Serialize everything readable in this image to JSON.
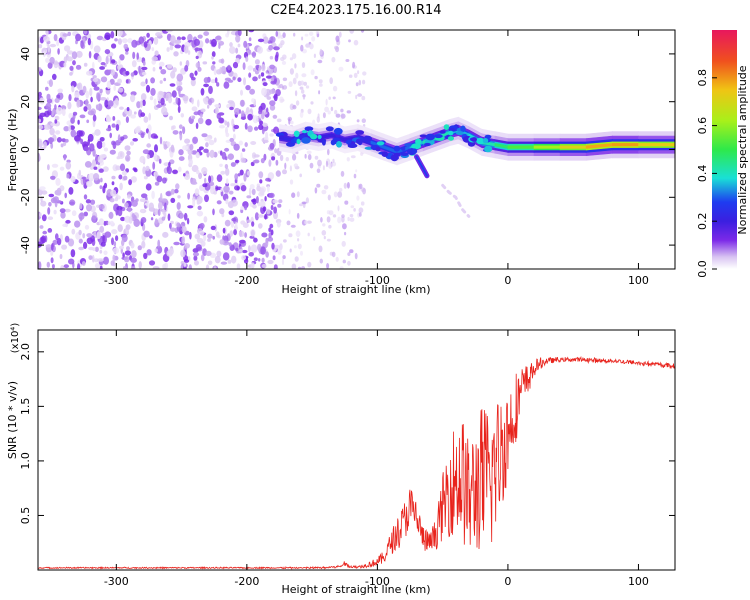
{
  "figure": {
    "title": "C2E4.2023.175.16.00.R14"
  },
  "chart_data": [
    {
      "type": "heatmap",
      "xlabel": "Height of straight line (km)",
      "ylabel": "Frequency (Hz)",
      "xlim": [
        -360,
        128
      ],
      "ylim": [
        -50,
        50
      ],
      "xticks": [
        -300,
        -200,
        -100,
        0,
        100
      ],
      "yticks": [
        -40,
        -20,
        0,
        20,
        40
      ],
      "xtick_labels": [
        "-300",
        "-200",
        "-100",
        "0",
        "100"
      ],
      "ytick_labels": [
        "-40",
        "-20",
        "0",
        "20",
        "40"
      ],
      "colorbar": {
        "label": "Normalized spectral amplitude",
        "range": [
          0,
          1
        ],
        "ticks": [
          0.0,
          0.2,
          0.4,
          0.6,
          0.8
        ],
        "tick_labels": [
          "0.0",
          "0.2",
          "0.4",
          "0.6",
          "0.8"
        ],
        "colormap": [
          "#ffffff",
          "#d9c4f2",
          "#7c2ae8",
          "#3b1fe0",
          "#1e3cf0",
          "#19e0d6",
          "#2ee94a",
          "#a8f01a",
          "#f0c414",
          "#f0501e",
          "#e8175d"
        ]
      },
      "noise_region_x": [
        -360,
        -175
      ],
      "ridge": {
        "x": [
          -175,
          -165,
          -155,
          -145,
          -135,
          -125,
          -115,
          -105,
          -95,
          -85,
          -75,
          -65,
          -55,
          -45,
          -38,
          -30,
          -20,
          -10,
          0,
          20,
          40,
          60,
          80,
          100,
          128
        ],
        "y": [
          5,
          4,
          6,
          5,
          6,
          4,
          5,
          3,
          1,
          -1,
          1,
          3,
          5,
          7,
          8,
          6,
          3,
          2,
          1,
          1,
          1,
          1,
          2,
          2,
          2
        ],
        "amplitude": [
          0.3,
          0.35,
          0.35,
          0.3,
          0.3,
          0.3,
          0.3,
          0.4,
          0.45,
          0.4,
          0.45,
          0.5,
          0.55,
          0.5,
          0.45,
          0.5,
          0.5,
          0.55,
          0.6,
          0.65,
          0.75,
          0.8,
          0.85,
          0.82,
          0.75
        ]
      },
      "branches": [
        {
          "x": [
            -70,
            -65,
            -62
          ],
          "y": [
            -3,
            -8,
            -11
          ]
        },
        {
          "x": [
            -50,
            -45,
            -40,
            -35,
            -30
          ],
          "y": [
            -15,
            -18,
            -20,
            -25,
            -28
          ]
        }
      ]
    },
    {
      "type": "line",
      "xlabel": "Height of straight line (km)",
      "ylabel": "SNR (10 * v/v)",
      "y_multiplier": "(x10⁴)",
      "xlim": [
        -360,
        128
      ],
      "ylim": [
        0,
        2.2
      ],
      "xticks": [
        -300,
        -200,
        -100,
        0,
        100
      ],
      "yticks": [
        0.5,
        1.0,
        1.5,
        2.0
      ],
      "xtick_labels": [
        "-300",
        "-200",
        "-100",
        "0",
        "100"
      ],
      "ytick_labels": [
        "0.5",
        "1.0",
        "1.5",
        "2.0"
      ],
      "color": "#e8231c",
      "series": [
        {
          "x": [
            -360,
            -200,
            -150,
            -130,
            -125,
            -120,
            -115,
            -110,
            -105,
            -100,
            -95,
            -90,
            -85,
            -80,
            -75,
            -70,
            -65,
            -60,
            -55,
            -50,
            -45,
            -40,
            -35,
            -30,
            -25,
            -20,
            -15,
            -10,
            -5,
            0,
            5,
            10,
            15,
            20,
            25,
            30,
            40,
            50,
            60,
            70,
            80,
            90,
            100,
            110,
            120,
            128
          ],
          "y": [
            0.02,
            0.02,
            0.02,
            0.03,
            0.06,
            0.03,
            0.03,
            0.04,
            0.06,
            0.08,
            0.12,
            0.25,
            0.35,
            0.45,
            0.6,
            0.5,
            0.3,
            0.25,
            0.35,
            0.6,
            0.8,
            0.9,
            0.9,
            0.7,
            0.8,
            0.9,
            0.85,
            1.0,
            1.15,
            1.3,
            1.5,
            1.65,
            1.75,
            1.85,
            1.9,
            1.92,
            1.93,
            1.93,
            1.93,
            1.92,
            1.92,
            1.91,
            1.9,
            1.89,
            1.88,
            1.87
          ],
          "noise": [
            0,
            0,
            0.005,
            0.01,
            0.02,
            0.01,
            0.01,
            0.02,
            0.03,
            0.04,
            0.06,
            0.1,
            0.15,
            0.18,
            0.2,
            0.18,
            0.12,
            0.1,
            0.15,
            0.3,
            0.45,
            0.55,
            0.6,
            0.55,
            0.6,
            0.7,
            0.75,
            0.65,
            0.55,
            0.45,
            0.35,
            0.25,
            0.15,
            0.08,
            0.05,
            0.03,
            0.02,
            0.02,
            0.02,
            0.02,
            0.02,
            0.02,
            0.02,
            0.02,
            0.02,
            0.02
          ]
        }
      ]
    }
  ]
}
